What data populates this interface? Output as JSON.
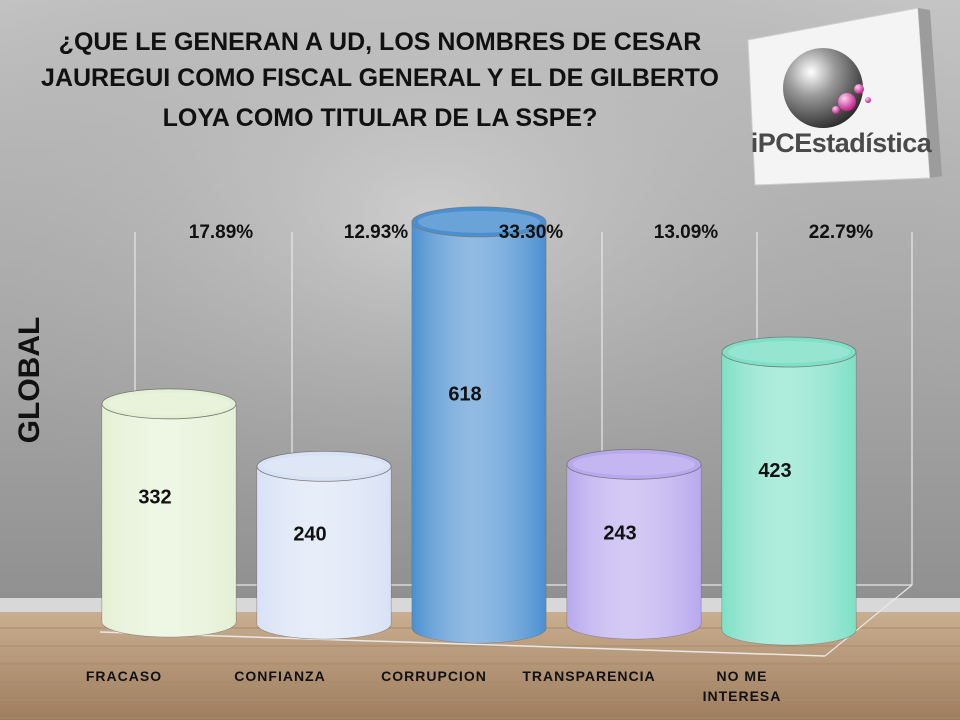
{
  "title_lines": [
    "¿QUE LE GENERAN A UD, LOS NOMBRES DE CESAR",
    "JAUREGUI COMO FISCAL GENERAL Y EL DE GILBERTO",
    "LOYA COMO TITULAR DE LA SSPE?"
  ],
  "y_label": "GLOBAL",
  "logo": {
    "text": "iPCEstadística",
    "brand": "iPC Estadística",
    "icon": "sphere-logo-icon"
  },
  "colors": {
    "background": "#9a9a9a",
    "floor": "#b89a7a",
    "bars": [
      "#e4f0d4",
      "#d8e2f5",
      "#4a8fd0",
      "#b8a8ee",
      "#7ee0c6"
    ]
  },
  "chart_data": {
    "type": "bar",
    "categories": [
      "FRACASO",
      "CONFIANZA",
      "CORRUPCION",
      "TRANSPARENCIA",
      "NO ME INTERESA"
    ],
    "values": [
      332,
      240,
      618,
      243,
      423
    ],
    "percent_labels": [
      "17.89%",
      "12.93%",
      "33.30%",
      "13.09%",
      "22.79%"
    ],
    "title": "¿QUE LE GENERAN A UD, LOS NOMBRES DE CESAR JAUREGUI COMO FISCAL GENERAL Y EL DE GILBERTO LOYA COMO TITULAR DE LA SSPE?",
    "ylabel": "GLOBAL",
    "ylim": [
      0,
      700
    ],
    "grid": false,
    "legend": "none"
  }
}
